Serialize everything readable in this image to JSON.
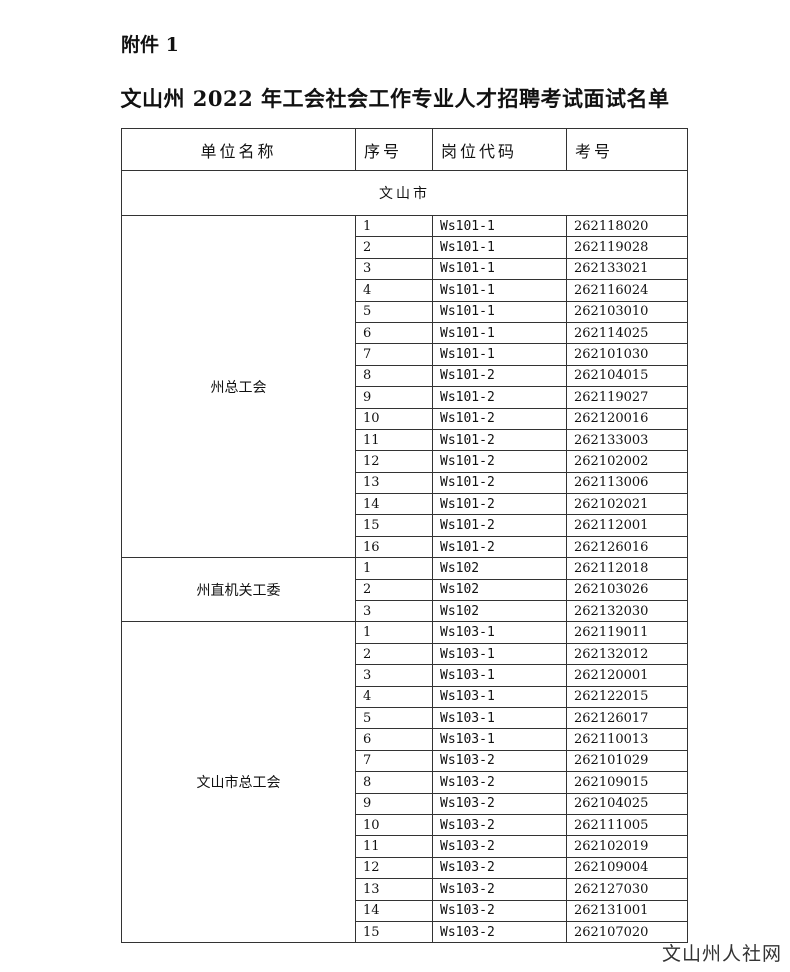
{
  "attachment_label": "附件 1",
  "title": "文山州 2022 年工会社会工作专业人才招聘考试面试名单",
  "headers": [
    "单位名称",
    "序号",
    "岗位代码",
    "考号"
  ],
  "region": "文山市",
  "groups": [
    {
      "unit": "州总工会",
      "rows": [
        [
          "1",
          "Ws101-1",
          "262118020"
        ],
        [
          "2",
          "Ws101-1",
          "262119028"
        ],
        [
          "3",
          "Ws101-1",
          "262133021"
        ],
        [
          "4",
          "Ws101-1",
          "262116024"
        ],
        [
          "5",
          "Ws101-1",
          "262103010"
        ],
        [
          "6",
          "Ws101-1",
          "262114025"
        ],
        [
          "7",
          "Ws101-1",
          "262101030"
        ],
        [
          "8",
          "Ws101-2",
          "262104015"
        ],
        [
          "9",
          "Ws101-2",
          "262119027"
        ],
        [
          "10",
          "Ws101-2",
          "262120016"
        ],
        [
          "11",
          "Ws101-2",
          "262133003"
        ],
        [
          "12",
          "Ws101-2",
          "262102002"
        ],
        [
          "13",
          "Ws101-2",
          "262113006"
        ],
        [
          "14",
          "Ws101-2",
          "262102021"
        ],
        [
          "15",
          "Ws101-2",
          "262112001"
        ],
        [
          "16",
          "Ws101-2",
          "262126016"
        ]
      ]
    },
    {
      "unit": "州直机关工委",
      "rows": [
        [
          "1",
          "Ws102",
          "262112018"
        ],
        [
          "2",
          "Ws102",
          "262103026"
        ],
        [
          "3",
          "Ws102",
          "262132030"
        ]
      ]
    },
    {
      "unit": "文山市总工会",
      "rows": [
        [
          "1",
          "Ws103-1",
          "262119011"
        ],
        [
          "2",
          "Ws103-1",
          "262132012"
        ],
        [
          "3",
          "Ws103-1",
          "262120001"
        ],
        [
          "4",
          "Ws103-1",
          "262122015"
        ],
        [
          "5",
          "Ws103-1",
          "262126017"
        ],
        [
          "6",
          "Ws103-1",
          "262110013"
        ],
        [
          "7",
          "Ws103-2",
          "262101029"
        ],
        [
          "8",
          "Ws103-2",
          "262109015"
        ],
        [
          "9",
          "Ws103-2",
          "262104025"
        ],
        [
          "10",
          "Ws103-2",
          "262111005"
        ],
        [
          "11",
          "Ws103-2",
          "262102019"
        ],
        [
          "12",
          "Ws103-2",
          "262109004"
        ],
        [
          "13",
          "Ws103-2",
          "262127030"
        ],
        [
          "14",
          "Ws103-2",
          "262131001"
        ],
        [
          "15",
          "Ws103-2",
          "262107020"
        ]
      ]
    }
  ],
  "watermark": "文山州人社网"
}
